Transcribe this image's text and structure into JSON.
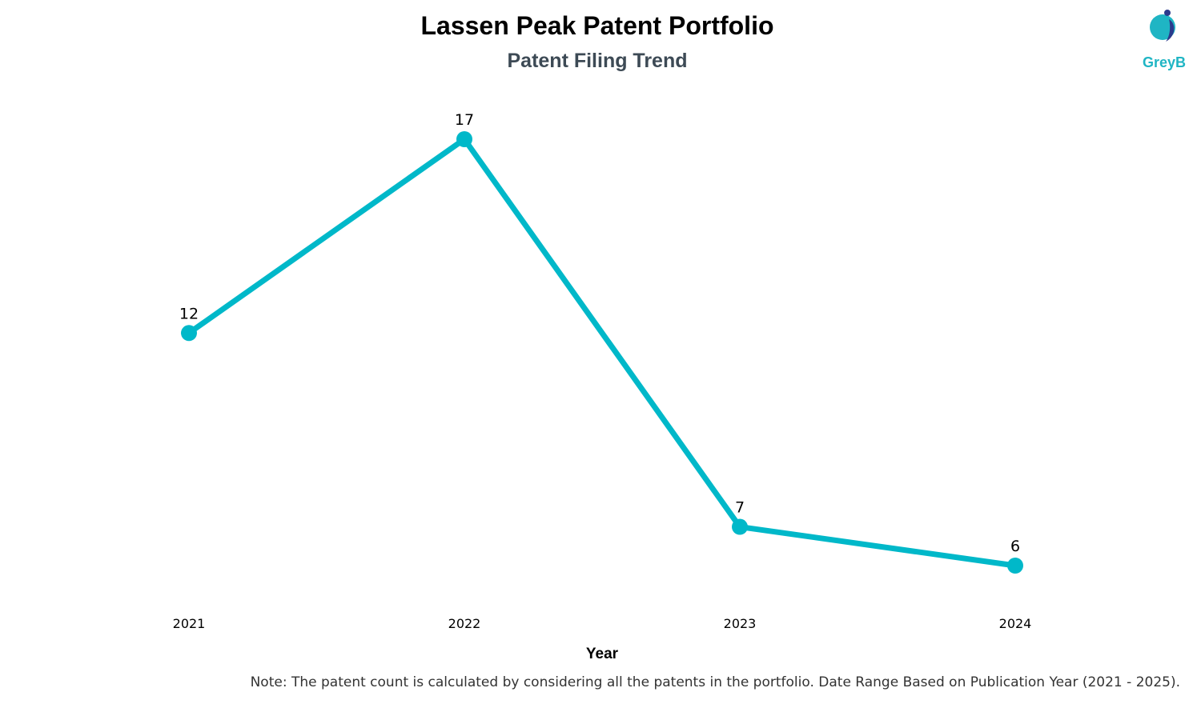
{
  "chart_data": {
    "type": "line",
    "title": "Lassen Peak Patent Portfolio",
    "subtitle": "Patent Filing Trend",
    "xlabel": "Year",
    "ylabel": "",
    "categories": [
      "2021",
      "2022",
      "2023",
      "2024"
    ],
    "series": [
      {
        "values": [
          12,
          17,
          7,
          6
        ]
      }
    ],
    "data_labels": [
      "12",
      "17",
      "7",
      "6"
    ],
    "ylim": [
      0,
      18
    ],
    "grid": false,
    "legend": "none",
    "line_color": "#00b8c9"
  },
  "logo": {
    "text": "GreyB",
    "color": "#1fb5c4",
    "dark_color": "#2b3a8c"
  },
  "note": "Note: The patent count is calculated by considering all the patents in the portfolio. Date Range Based on Publication Year (2021 - 2025)."
}
